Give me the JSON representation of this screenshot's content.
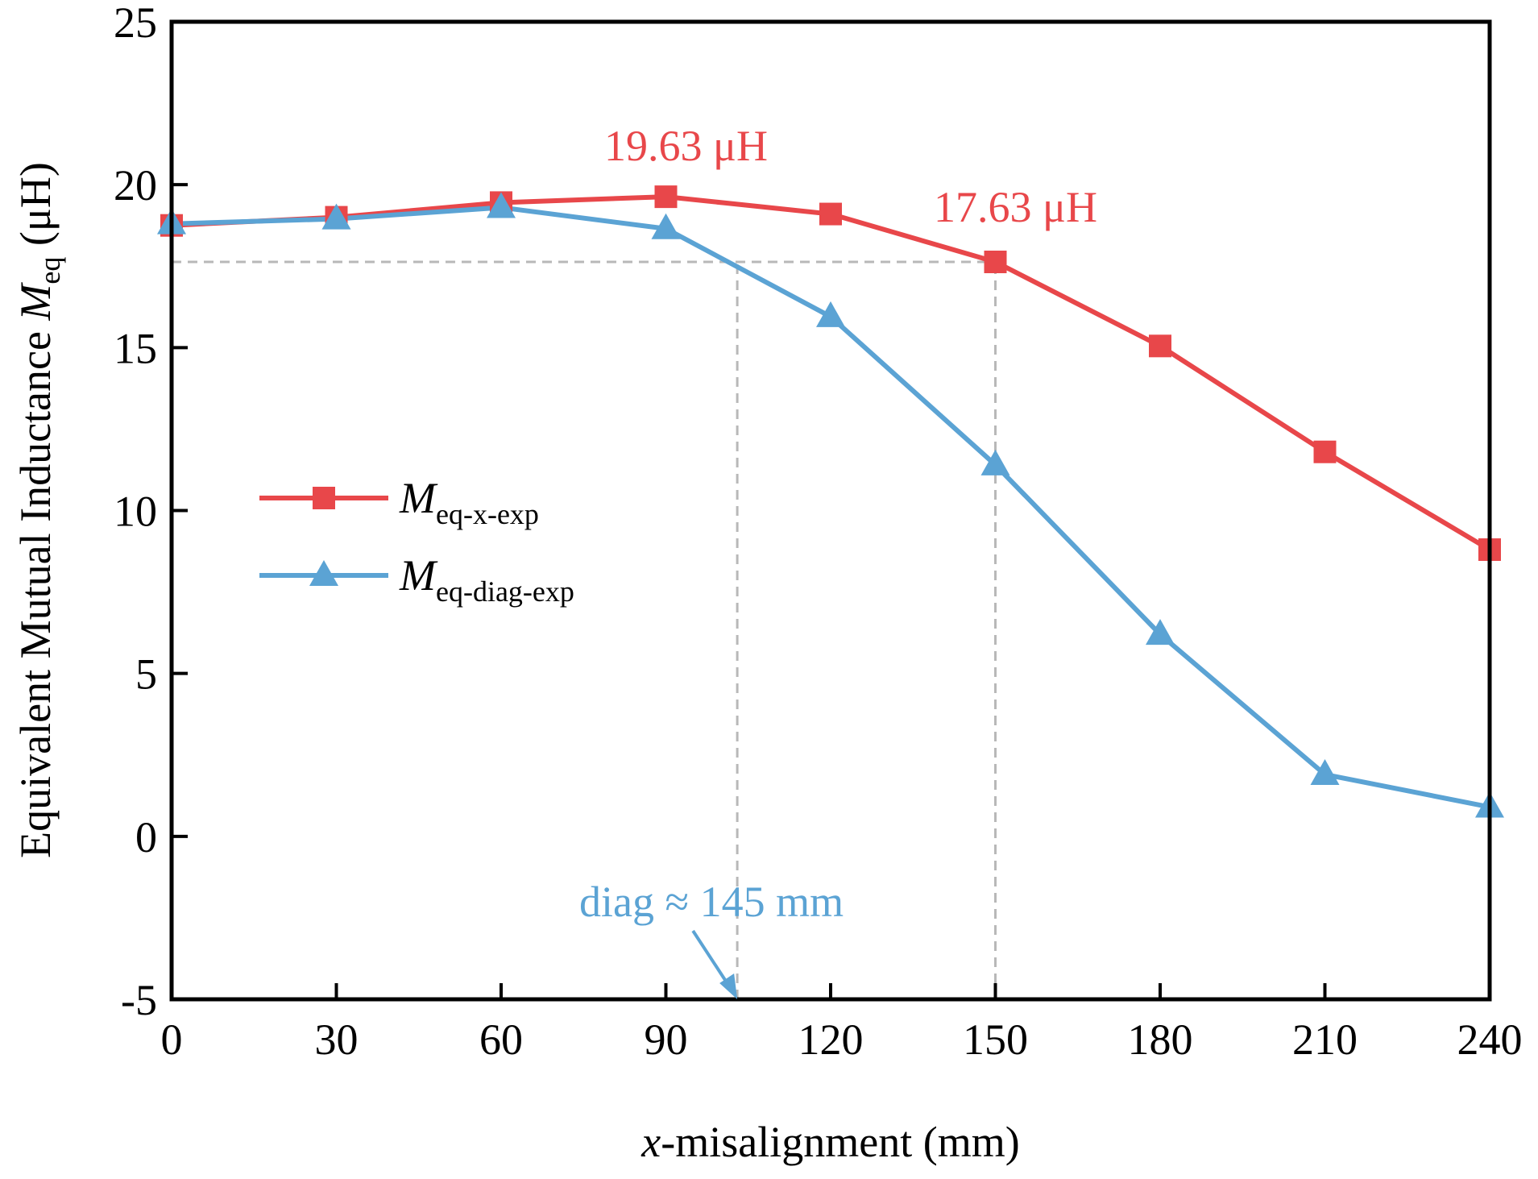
{
  "chart_data": {
    "type": "line",
    "xlabel": {
      "italic": "x",
      "rest": "-misalignment (mm)"
    },
    "ylabel": {
      "prefix": "Equivalent Mutual Inductance ",
      "symbol": "M",
      "subscript": "eq",
      "unit": " (μH)"
    },
    "xlim": [
      0,
      240
    ],
    "ylim": [
      -5,
      25
    ],
    "x_ticks": [
      0,
      30,
      60,
      90,
      120,
      150,
      180,
      210,
      240
    ],
    "y_ticks": [
      -5,
      0,
      5,
      10,
      15,
      20,
      25
    ],
    "grid": false,
    "legend_position": "middle-left",
    "x": [
      0,
      30,
      60,
      90,
      120,
      150,
      180,
      210,
      240
    ],
    "series": [
      {
        "name": "M_eq-x-exp",
        "legend_symbol": "M",
        "legend_sub": "eq-x-exp",
        "marker": "square",
        "color": "#e8474a",
        "values": [
          18.75,
          19.0,
          19.45,
          19.63,
          19.1,
          17.63,
          15.05,
          11.8,
          8.8
        ]
      },
      {
        "name": "M_eq-diag-exp",
        "legend_symbol": "M",
        "legend_sub": "eq-diag-exp",
        "marker": "triangle",
        "color": "#5ba3d4",
        "values": [
          18.8,
          18.95,
          19.3,
          18.65,
          15.95,
          11.4,
          6.2,
          1.9,
          0.9
        ]
      }
    ],
    "annotations": [
      {
        "text": "19.63 μH",
        "x": 90,
        "y": 19.63,
        "color": "#e8474a"
      },
      {
        "text": "17.63 μH",
        "x": 150,
        "y": 17.63,
        "color": "#e8474a"
      },
      {
        "text": "diag ≈ 145 mm",
        "x": 103,
        "y": -5,
        "color": "#5ba3d4"
      }
    ],
    "guide_lines": [
      {
        "type": "horizontal",
        "y": 17.63,
        "x_from": 0,
        "x_to": 150
      },
      {
        "type": "vertical",
        "x": 150,
        "y_from": -5,
        "y_to": 17.63
      },
      {
        "type": "vertical",
        "x": 103,
        "y_from": -5,
        "y_to": 17.63
      }
    ]
  }
}
